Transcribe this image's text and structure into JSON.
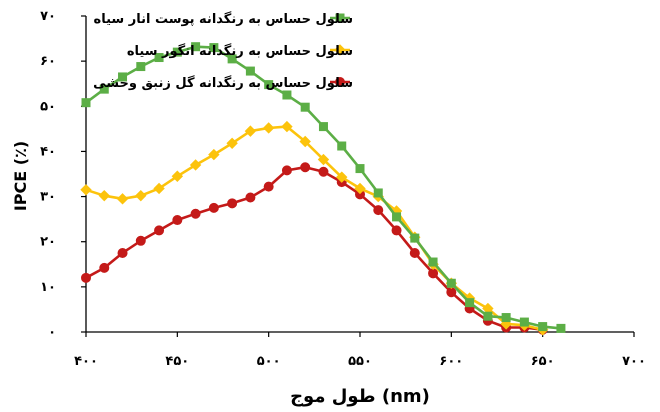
{
  "chart_data": {
    "type": "line",
    "xlabel": "طول موج (nm)",
    "ylabel": "IPCE (٪)",
    "xlim": [
      400,
      700
    ],
    "ylim": [
      0,
      70
    ],
    "x_tick_values": [
      400,
      450,
      500,
      550,
      600,
      650,
      700
    ],
    "x_tick_labels": [
      "۴۰۰",
      "۴۵۰",
      "۵۰۰",
      "۵۵۰",
      "۶۰۰",
      "۶۵۰",
      "۷۰۰"
    ],
    "y_tick_values": [
      0,
      10,
      20,
      30,
      40,
      50,
      60,
      70
    ],
    "y_tick_labels": [
      "۰",
      "۱۰",
      "۲۰",
      "۳۰",
      "۴۰",
      "۵۰",
      "۶۰",
      "۷۰"
    ],
    "grid": false,
    "legend_position": "top-right",
    "series": [
      {
        "name": "سلول حساس به رنگدانه پوست انار سیاه",
        "color": "#5cae46",
        "marker": "square",
        "x": [
          400,
          410,
          420,
          430,
          440,
          450,
          460,
          470,
          480,
          490,
          500,
          510,
          520,
          530,
          540,
          550,
          560,
          570,
          580,
          590,
          600,
          610,
          620,
          630,
          640,
          650,
          660
        ],
        "y": [
          50.8,
          53.8,
          56.5,
          58.8,
          60.8,
          62.0,
          63.2,
          63.0,
          60.5,
          57.8,
          54.8,
          52.5,
          49.8,
          45.5,
          41.2,
          36.2,
          30.8,
          25.5,
          20.8,
          15.5,
          10.8,
          6.5,
          3.5,
          3.2,
          2.2,
          1.2,
          0.8
        ]
      },
      {
        "name": "سلول حساس به رنگدانه انگور سیاه",
        "color": "#fcc30c",
        "marker": "diamond",
        "x": [
          400,
          410,
          420,
          430,
          440,
          450,
          460,
          470,
          480,
          490,
          500,
          510,
          520,
          530,
          540,
          550,
          560,
          570,
          580,
          590,
          600,
          610,
          620,
          630,
          640,
          650
        ],
        "y": [
          31.5,
          30.2,
          29.5,
          30.2,
          31.8,
          34.5,
          37.0,
          39.3,
          41.8,
          44.5,
          45.2,
          45.5,
          42.2,
          38.2,
          34.3,
          31.8,
          30.0,
          26.8,
          21.0,
          15.0,
          10.8,
          7.5,
          5.2,
          1.8,
          1.5,
          0.5
        ]
      },
      {
        "name": "سلول حساس به رنگدانه گل زنبق وحشی",
        "color": "#c41a19",
        "marker": "circle",
        "x": [
          400,
          410,
          420,
          430,
          440,
          450,
          460,
          470,
          480,
          490,
          500,
          510,
          520,
          530,
          540,
          550,
          560,
          570,
          580,
          590,
          600,
          610,
          620,
          630,
          640,
          650
        ],
        "y": [
          12.0,
          14.2,
          17.5,
          20.2,
          22.5,
          24.8,
          26.2,
          27.5,
          28.5,
          29.8,
          32.2,
          35.8,
          36.5,
          35.5,
          33.2,
          30.5,
          27.0,
          22.5,
          17.5,
          13.0,
          8.8,
          5.2,
          2.5,
          1.0,
          1.0,
          0.5
        ]
      }
    ]
  }
}
